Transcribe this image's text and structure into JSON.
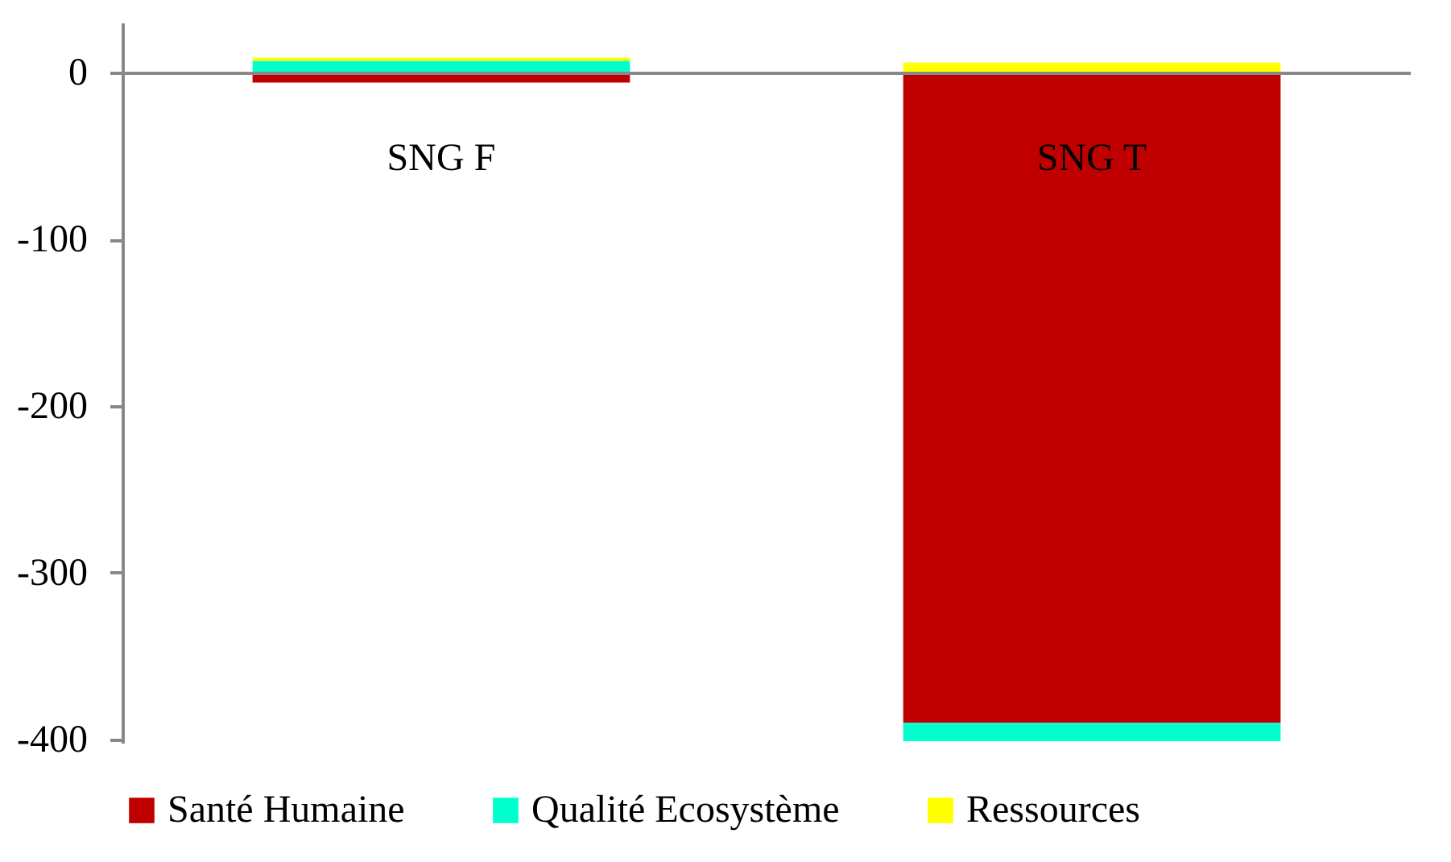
{
  "chart_data": {
    "type": "bar",
    "stacked": true,
    "categories": [
      "SNG F",
      "SNG T"
    ],
    "series": [
      {
        "name": "Santé Humaine",
        "color": "#c00000",
        "values": [
          -6,
          -390
        ]
      },
      {
        "name": "Qualité Ecosystème",
        "color": "#00ffcc",
        "values": [
          7,
          -11
        ]
      },
      {
        "name": "Ressources",
        "color": "#ffff00",
        "values": [
          2,
          6
        ]
      }
    ],
    "ylim": [
      -402,
      30
    ],
    "yticks": [
      0,
      -100,
      -200,
      -300,
      -400
    ],
    "grid": false,
    "legend": "bottom"
  }
}
